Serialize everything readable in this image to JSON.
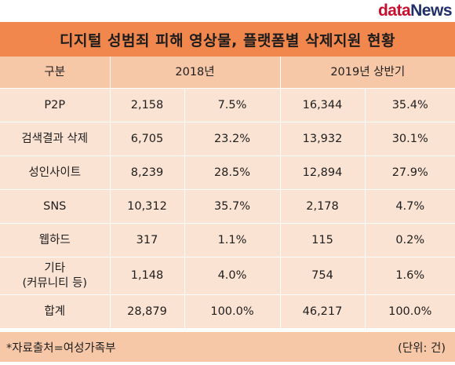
{
  "logo": {
    "part1": "data",
    "part2": "News"
  },
  "title": "디지털 성범죄 피해 영상물, 플랫폼별 삭제지원 현황",
  "table": {
    "headers": {
      "category": "구분",
      "year2018": "2018년",
      "year2019": "2019년 상반기"
    },
    "rows": [
      {
        "category": "P2P",
        "count2018": "2,158",
        "pct2018": "7.5%",
        "count2019": "16,344",
        "pct2019": "35.4%"
      },
      {
        "category": "검색결과 삭제",
        "count2018": "6,705",
        "pct2018": "23.2%",
        "count2019": "13,932",
        "pct2019": "30.1%"
      },
      {
        "category": "성인사이트",
        "count2018": "8,239",
        "pct2018": "28.5%",
        "count2019": "12,894",
        "pct2019": "27.9%"
      },
      {
        "category": "SNS",
        "count2018": "10,312",
        "pct2018": "35.7%",
        "count2019": "2,178",
        "pct2019": "4.7%"
      },
      {
        "category": "웹하드",
        "count2018": "317",
        "pct2018": "1.1%",
        "count2019": "115",
        "pct2019": "0.2%"
      },
      {
        "category": "기타",
        "category_sub": "(커뮤니티 등)",
        "count2018": "1,148",
        "pct2018": "4.0%",
        "count2019": "754",
        "pct2019": "1.6%"
      },
      {
        "category": "합계",
        "count2018": "28,879",
        "pct2018": "100.0%",
        "count2019": "46,217",
        "pct2019": "100.0%"
      }
    ]
  },
  "footer": {
    "source": "*자료출처=여성가족부",
    "unit": "(단위: 건)"
  },
  "colors": {
    "title_bar": "#f2874d",
    "header_row": "#f7c8a8",
    "body_row": "#fbe3d3",
    "logo_red": "#c8102e",
    "logo_navy": "#1f2f6b"
  }
}
